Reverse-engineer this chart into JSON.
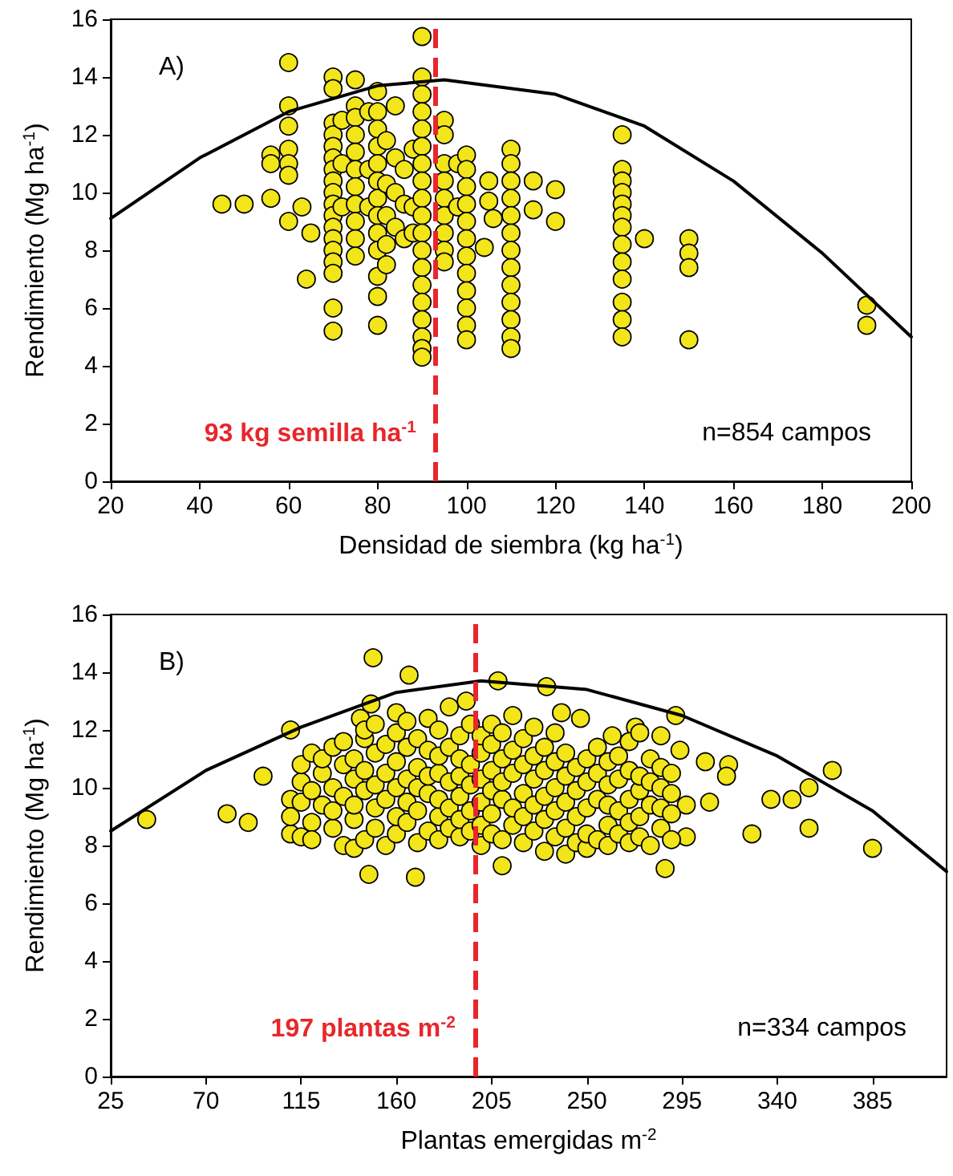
{
  "chart_data": [
    {
      "type": "scatter",
      "xlabel": "Densidad de siembra (kg ha$^{-1}$)",
      "ylabel": "Rendimiento (Mg ha$^{-1}$)",
      "xlim": [
        20,
        200
      ],
      "xticks": [
        20,
        40,
        60,
        80,
        100,
        120,
        140,
        160,
        180,
        200
      ],
      "ylim": [
        0,
        16
      ],
      "yticks": [
        0,
        2,
        4,
        6,
        8,
        10,
        12,
        14,
        16
      ],
      "grid": false,
      "marker": "circle",
      "annotations": [
        "A)",
        "n=854 campos"
      ],
      "ref_lines": [
        {
          "axis": "x",
          "value": 93,
          "label": "93 kg semilla ha$^{-1}$",
          "color": "#e8262b",
          "line_style": "dashed"
        }
      ],
      "series": [
        {
          "color": "#f2e51a",
          "x": [
            45,
            50,
            56,
            56,
            56,
            60,
            60,
            60,
            60,
            60,
            60,
            60,
            63,
            64,
            65,
            70,
            70,
            70,
            70,
            70,
            70,
            70,
            70,
            70,
            70,
            70,
            70,
            70,
            70,
            70,
            70,
            70,
            70,
            72,
            72,
            72,
            75,
            75,
            75,
            75,
            75,
            75,
            75,
            75,
            75,
            75,
            75,
            78,
            78,
            78,
            80,
            80,
            80,
            80,
            80,
            80,
            80,
            80,
            80,
            80,
            80,
            80,
            80,
            82,
            82,
            82,
            82,
            82,
            84,
            84,
            84,
            84,
            86,
            86,
            86,
            88,
            88,
            88,
            90,
            90,
            90,
            90,
            90,
            90,
            90,
            90,
            90,
            90,
            90,
            90,
            90,
            90,
            90,
            90,
            90,
            90,
            90,
            95,
            95,
            95,
            95,
            95,
            95,
            95,
            95,
            95,
            98,
            98,
            100,
            100,
            100,
            100,
            100,
            100,
            100,
            100,
            100,
            100,
            100,
            100,
            104,
            105,
            105,
            106,
            110,
            110,
            110,
            110,
            110,
            110,
            110,
            110,
            110,
            110,
            110,
            110,
            110,
            115,
            115,
            120,
            120,
            135,
            135,
            135,
            135,
            135,
            135,
            135,
            135,
            135,
            135,
            135,
            135,
            135,
            140,
            150,
            150,
            150,
            150,
            190,
            190
          ],
          "values": [
            9.6,
            9.6,
            11.3,
            11.0,
            9.8,
            14.5,
            13.0,
            12.3,
            11.5,
            11.0,
            10.6,
            9.0,
            9.5,
            7.0,
            8.6,
            14.0,
            13.6,
            12.4,
            12.0,
            11.6,
            11.2,
            10.8,
            10.4,
            10.0,
            9.6,
            9.2,
            8.8,
            8.4,
            8.0,
            7.6,
            7.2,
            6.0,
            5.2,
            12.5,
            11.0,
            9.5,
            13.9,
            13.0,
            12.6,
            12.0,
            11.4,
            10.8,
            10.2,
            9.6,
            9.0,
            8.4,
            7.8,
            12.8,
            10.8,
            9.5,
            13.5,
            12.8,
            12.2,
            11.6,
            11.0,
            10.4,
            9.8,
            9.2,
            8.6,
            8.0,
            7.1,
            6.4,
            5.4,
            11.8,
            10.3,
            9.2,
            8.2,
            7.5,
            13.0,
            11.2,
            10.0,
            8.8,
            10.8,
            9.6,
            8.4,
            11.5,
            9.5,
            8.6,
            15.4,
            14.0,
            13.4,
            12.8,
            12.2,
            11.6,
            11.0,
            10.4,
            9.8,
            9.2,
            8.6,
            8.0,
            7.4,
            6.8,
            6.2,
            5.6,
            5.0,
            4.6,
            4.3,
            12.5,
            12.0,
            11.0,
            10.4,
            9.8,
            9.2,
            8.6,
            8.0,
            7.6,
            11.0,
            9.5,
            11.3,
            10.8,
            10.2,
            9.6,
            9.0,
            8.4,
            7.8,
            7.2,
            6.6,
            6.0,
            5.4,
            4.9,
            8.1,
            10.4,
            9.7,
            9.1,
            11.5,
            11.0,
            10.4,
            9.8,
            9.2,
            8.6,
            8.0,
            7.4,
            6.8,
            6.2,
            5.6,
            5.0,
            4.6,
            10.4,
            9.4,
            10.1,
            9.0,
            12.0,
            10.8,
            10.4,
            10.0,
            9.6,
            9.2,
            8.8,
            8.2,
            7.6,
            7.0,
            6.2,
            5.6,
            5.0,
            8.4,
            8.4,
            7.9,
            7.4,
            4.9,
            6.1,
            5.4
          ]
        },
        {
          "type": "line",
          "color": "#000000",
          "marker": "none",
          "x": [
            20,
            40,
            60,
            80,
            95,
            120,
            140,
            160,
            180,
            200
          ],
          "values": [
            9.1,
            11.2,
            12.8,
            13.7,
            13.9,
            13.4,
            12.3,
            10.4,
            7.9,
            5.0
          ]
        }
      ]
    },
    {
      "type": "scatter",
      "xlabel": "Plantas emergidas m$^{-2}$",
      "ylabel": "Rendimiento (Mg ha$^{-1}$)",
      "xlim": [
        25,
        420
      ],
      "xticks": [
        25,
        70,
        115,
        160,
        205,
        250,
        295,
        340,
        385
      ],
      "ylim": [
        0,
        16
      ],
      "yticks": [
        0,
        2,
        4,
        6,
        8,
        10,
        12,
        14,
        16
      ],
      "grid": false,
      "marker": "circle",
      "annotations": [
        "B)",
        "n=334 campos"
      ],
      "ref_lines": [
        {
          "axis": "x",
          "value": 197,
          "label": "197 plantas m$^{-2}$",
          "color": "#e8262b",
          "line_style": "dashed"
        }
      ],
      "series": [
        {
          "color": "#f2e51a",
          "x": [
            42,
            80,
            90,
            97,
            110,
            149,
            166,
            208,
            231,
            147,
            169,
            210,
            287,
            328,
            337,
            347,
            355,
            355,
            366,
            385,
            308,
            306,
            317,
            316,
            292,
            294,
            297,
            297,
            247,
            238,
            262,
            273,
            148,
            143,
            193,
            110,
            110,
            110,
            115,
            115,
            115,
            115,
            120,
            120,
            120,
            120,
            125,
            125,
            125,
            130,
            130,
            130,
            130,
            135,
            135,
            135,
            135,
            140,
            140,
            140,
            140,
            140,
            145,
            145,
            145,
            145,
            145,
            150,
            150,
            150,
            150,
            150,
            155,
            155,
            155,
            155,
            160,
            160,
            160,
            160,
            160,
            160,
            165,
            165,
            165,
            165,
            165,
            170,
            170,
            170,
            170,
            170,
            175,
            175,
            175,
            175,
            175,
            180,
            180,
            180,
            180,
            180,
            180,
            185,
            185,
            185,
            185,
            185,
            190,
            190,
            190,
            190,
            190,
            190,
            195,
            195,
            195,
            195,
            195,
            200,
            200,
            200,
            200,
            200,
            200,
            205,
            205,
            205,
            205,
            205,
            205,
            210,
            210,
            210,
            210,
            210,
            215,
            215,
            215,
            215,
            215,
            220,
            220,
            220,
            220,
            220,
            225,
            225,
            225,
            225,
            225,
            230,
            230,
            230,
            230,
            230,
            235,
            235,
            235,
            235,
            235,
            240,
            240,
            240,
            240,
            240,
            245,
            245,
            245,
            245,
            250,
            250,
            250,
            250,
            250,
            255,
            255,
            255,
            255,
            260,
            260,
            260,
            260,
            260,
            265,
            265,
            265,
            265,
            270,
            270,
            270,
            270,
            270,
            275,
            275,
            275,
            275,
            275,
            280,
            280,
            280,
            280,
            285,
            285,
            285,
            285,
            285,
            290,
            290,
            290,
            290
          ],
          "values": [
            8.9,
            9.1,
            8.8,
            10.4,
            12.0,
            14.5,
            13.9,
            13.7,
            13.5,
            7.0,
            6.9,
            7.3,
            7.2,
            8.4,
            9.6,
            9.6,
            10.0,
            8.6,
            10.6,
            7.9,
            9.5,
            10.9,
            10.8,
            10.4,
            12.5,
            11.3,
            9.4,
            8.3,
            12.4,
            12.6,
            11.8,
            12.1,
            12.9,
            12.4,
            13.0,
            9.6,
            8.4,
            9.0,
            10.2,
            8.3,
            9.5,
            10.8,
            8.8,
            11.2,
            9.9,
            8.2,
            10.5,
            9.4,
            11.0,
            8.6,
            10.0,
            11.4,
            9.2,
            8.0,
            9.7,
            10.8,
            11.6,
            8.9,
            10.3,
            9.4,
            11.0,
            7.9,
            8.2,
            9.9,
            10.6,
            11.7,
            12.0,
            8.6,
            9.3,
            10.1,
            11.2,
            12.2,
            8.0,
            9.6,
            10.5,
            11.5,
            8.4,
            9.0,
            10.0,
            10.9,
            11.9,
            12.6,
            8.8,
            9.5,
            10.3,
            11.4,
            12.3,
            8.1,
            9.2,
            10.0,
            10.7,
            11.7,
            8.5,
            9.8,
            10.4,
            11.3,
            12.4,
            8.2,
            9.0,
            9.6,
            10.5,
            11.1,
            12.0,
            8.6,
            9.3,
            10.2,
            11.4,
            12.8,
            8.3,
            8.9,
            9.7,
            10.4,
            11.0,
            11.8,
            8.5,
            9.2,
            10.1,
            10.8,
            12.2,
            8.0,
            8.7,
            9.5,
            10.3,
            11.2,
            11.8,
            8.4,
            9.1,
            9.9,
            10.6,
            11.5,
            12.2,
            8.2,
            9.6,
            10.2,
            11.0,
            11.9,
            8.7,
            9.3,
            10.5,
            11.3,
            12.5,
            8.1,
            9.0,
            9.8,
            10.8,
            11.7,
            8.5,
            9.4,
            10.3,
            11.1,
            12.1,
            7.8,
            8.9,
            9.7,
            10.6,
            11.4,
            8.3,
            9.2,
            10.0,
            10.9,
            11.9,
            7.7,
            8.6,
            9.5,
            10.4,
            11.2,
            8.1,
            9.0,
            9.9,
            10.7,
            7.9,
            8.4,
            9.3,
            10.2,
            11.0,
            8.2,
            9.6,
            10.5,
            11.4,
            8.0,
            8.7,
            9.4,
            10.1,
            10.9,
            8.4,
            9.2,
            10.3,
            11.1,
            8.1,
            8.8,
            9.6,
            10.6,
            11.6,
            8.3,
            9.0,
            9.9,
            10.4,
            11.9,
            8.0,
            9.4,
            10.2,
            11.0,
            8.6,
            9.3,
            10.0,
            10.7,
            11.8,
            8.2,
            9.1,
            9.8,
            10.5
          ]
        },
        {
          "type": "line",
          "color": "#000000",
          "marker": "none",
          "x": [
            25,
            70,
            115,
            160,
            200,
            250,
            295,
            340,
            385,
            420
          ],
          "values": [
            8.5,
            10.6,
            12.1,
            13.3,
            13.7,
            13.4,
            12.5,
            11.1,
            9.2,
            7.1
          ]
        }
      ]
    }
  ]
}
